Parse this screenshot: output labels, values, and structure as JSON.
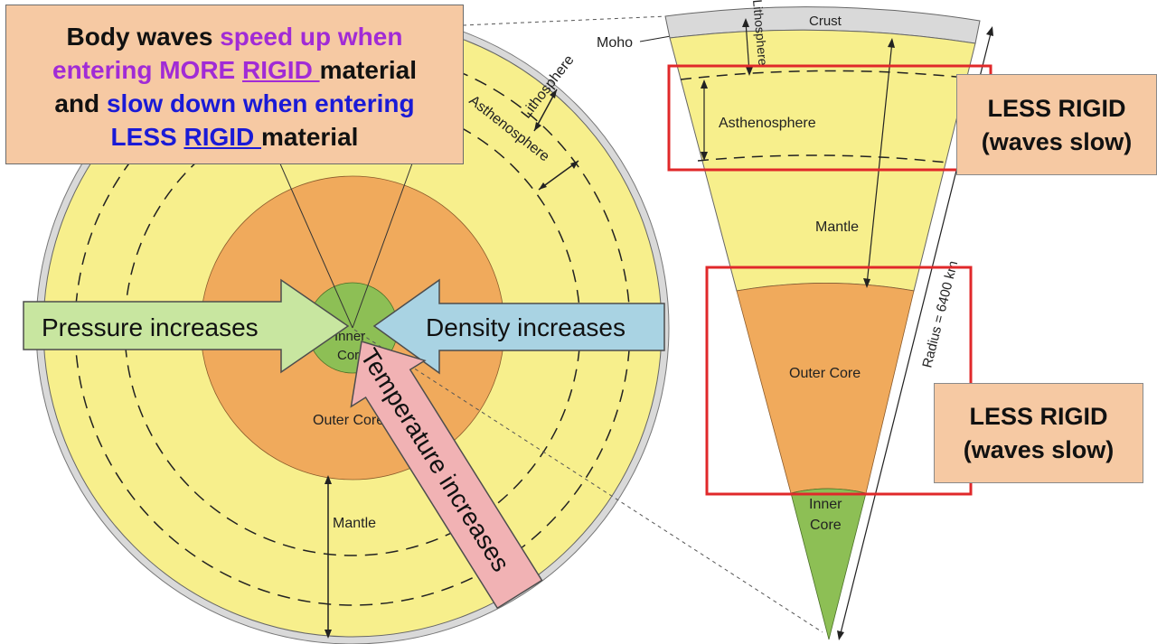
{
  "callout": {
    "line1_a": "Body waves ",
    "line1_b": "speed up when",
    "line2_a": "entering MORE ",
    "line2_b": "RIGID ",
    "line2_c": "material",
    "line3_a": "and ",
    "line3_b": "slow down when entering",
    "line4_a": "LESS ",
    "line4_b": "RIGID ",
    "line4_c": "material"
  },
  "less_boxes": [
    {
      "line1": "LESS RIGID",
      "line2": "(waves slow)"
    },
    {
      "line1": "LESS RIGID",
      "line2": "(waves slow)"
    }
  ],
  "circle_labels": {
    "lithosphere": "Lithosphere",
    "asthenosphere": "Asthenosphere",
    "moho": "Moho",
    "inner_core": "Inner Core",
    "inner_core_line1": "Inner",
    "inner_core_line2": "Core",
    "outer_core": "Outer Core",
    "mantle": "Mantle"
  },
  "wedge_labels": {
    "crust": "Crust",
    "lithosphere": "Lithosphere",
    "asthenosphere": "Asthenosphere",
    "mantle": "Mantle",
    "outer_core": "Outer Core",
    "inner_core_line1": "Inner",
    "inner_core_line2": "Core",
    "radius": "Radius = 6400 km"
  },
  "arrows": {
    "pressure": "Pressure increases",
    "density": "Density increases",
    "temperature": "Temperature increases"
  },
  "colors": {
    "crust": "#d9d9d9",
    "mantle": "#f7ef8c",
    "outer_core": "#f0aa5c",
    "inner_core": "#8dbf55",
    "callout_bg": "#f6c9a3",
    "highlight_red": "#e0282a",
    "pressure_arrow": "#c8e6a0",
    "density_arrow": "#a9d3e3",
    "temperature_arrow": "#f1b2b4",
    "purple_text": "#a12bd6",
    "blue_text": "#1a1ad6"
  }
}
